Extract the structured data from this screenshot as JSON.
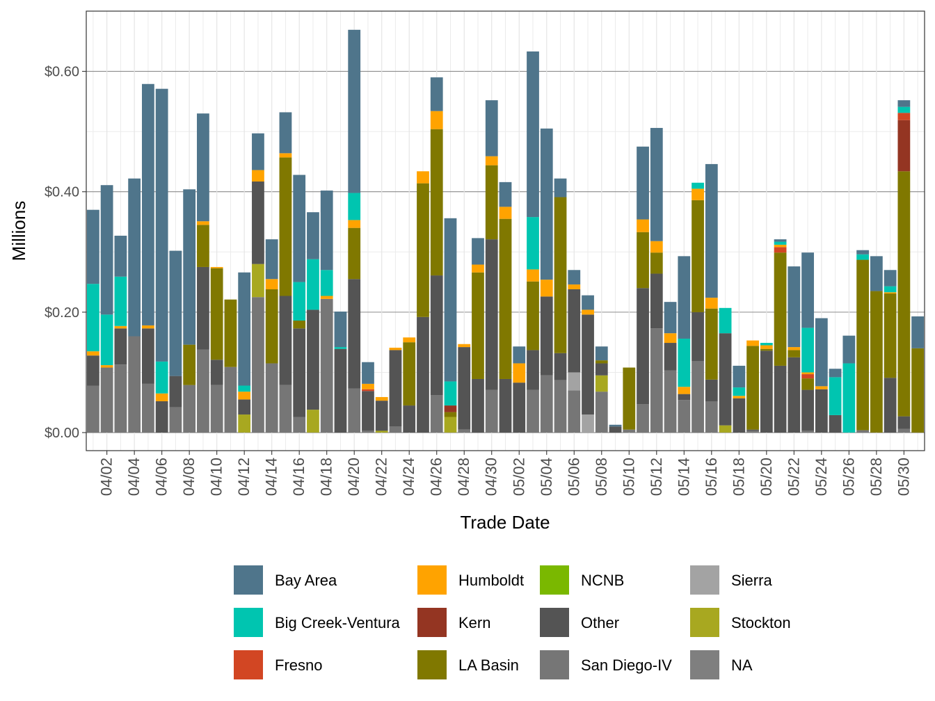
{
  "chart_data": {
    "type": "bar",
    "stacked": true,
    "xlabel": "Trade Date",
    "ylabel": "Millions",
    "ylim": [
      -0.03,
      0.7
    ],
    "y_ticks": [
      0.0,
      0.2,
      0.4,
      0.6
    ],
    "y_tick_labels": [
      "$0.00",
      "$0.20",
      "$0.40",
      "$0.60"
    ],
    "x_tick_labels": [
      "04/02",
      "04/04",
      "04/06",
      "04/08",
      "04/10",
      "04/12",
      "04/14",
      "04/16",
      "04/18",
      "04/20",
      "04/22",
      "04/24",
      "04/26",
      "04/28",
      "04/30",
      "05/02",
      "05/04",
      "05/06",
      "05/08",
      "05/10",
      "05/12",
      "05/14",
      "05/16",
      "05/18",
      "05/20",
      "05/22",
      "05/24",
      "05/26",
      "05/28",
      "05/30"
    ],
    "categories": [
      "04/01",
      "04/02",
      "04/03",
      "04/04",
      "04/05",
      "04/06",
      "04/07",
      "04/08",
      "04/09",
      "04/10",
      "04/11",
      "04/12",
      "04/13",
      "04/14",
      "04/15",
      "04/16",
      "04/17",
      "04/18",
      "04/19",
      "04/20",
      "04/21",
      "04/22",
      "04/23",
      "04/24",
      "04/25",
      "04/26",
      "04/27",
      "04/28",
      "04/29",
      "04/30",
      "05/01",
      "05/02",
      "05/03",
      "05/04",
      "05/05",
      "05/06",
      "05/07",
      "05/08",
      "05/09",
      "05/10",
      "05/11",
      "05/12",
      "05/13",
      "05/14",
      "05/15",
      "05/16",
      "05/17",
      "05/18",
      "05/19",
      "05/20",
      "05/21",
      "05/22",
      "05/23",
      "05/24",
      "05/25",
      "05/26",
      "05/27",
      "05/28",
      "05/29",
      "05/30",
      "05/31"
    ],
    "stack_order": [
      "San Diego-IV",
      "Stockton",
      "Sierra",
      "Other",
      "NCNB",
      "LA Basin",
      "Kern",
      "Fresno",
      "Humboldt",
      "Big Creek-Ventura",
      "Bay Area"
    ],
    "colors": {
      "Bay Area": "#4f758b",
      "Big Creek-Ventura": "#00c5b0",
      "Fresno": "#d24623",
      "Humboldt": "#ffa300",
      "Kern": "#943522",
      "LA Basin": "#807800",
      "NCNB": "#7ab800",
      "Other": "#545454",
      "San Diego-IV": "#767676",
      "Sierra": "#a3a3a3",
      "Stockton": "#a8a820",
      "NA": "#7f7f7f"
    },
    "series": [
      {
        "name": "San Diego-IV",
        "values": [
          0.078,
          0.108,
          0.113,
          0.16,
          0.081,
          0.0,
          0.042,
          0.079,
          0.138,
          0.079,
          0.109,
          0.0,
          0.225,
          0.115,
          0.079,
          0.026,
          0.0,
          0.222,
          0.0,
          0.073,
          0.003,
          0.0,
          0.01,
          0.0,
          0.0,
          0.062,
          0.0,
          0.005,
          0.0,
          0.071,
          0.0,
          0.0,
          0.071,
          0.095,
          0.087,
          0.07,
          0.0,
          0.068,
          0.0,
          0.005,
          0.047,
          0.173,
          0.103,
          0.054,
          0.119,
          0.052,
          0.0,
          0.0,
          0.003,
          0.0,
          0.0,
          0.0,
          0.003,
          0.0,
          0.0,
          0.0,
          0.004,
          0.0,
          0.0,
          0.006,
          0.0
        ]
      },
      {
        "name": "Stockton",
        "values": [
          0.0,
          0.0,
          0.0,
          0.0,
          0.0,
          0.0,
          0.0,
          0.0,
          0.0,
          0.0,
          0.0,
          0.03,
          0.055,
          0.0,
          0.0,
          0.0,
          0.038,
          0.0,
          0.0,
          0.0,
          0.0,
          0.003,
          0.0,
          0.0,
          0.0,
          0.0,
          0.026,
          0.0,
          0.0,
          0.0,
          0.0,
          0.0,
          0.0,
          0.0,
          0.0,
          0.0,
          0.0,
          0.027,
          0.0,
          0.0,
          0.0,
          0.0,
          0.0,
          0.0,
          0.0,
          0.0,
          0.012,
          0.0,
          0.0,
          0.0,
          0.0,
          0.0,
          0.0,
          0.0,
          0.0,
          0.0,
          0.0,
          0.0,
          0.0,
          0.0,
          0.0
        ]
      },
      {
        "name": "Sierra",
        "values": [
          0.0,
          0.0,
          0.0,
          0.0,
          0.0,
          0.0,
          0.0,
          0.0,
          0.0,
          0.0,
          0.0,
          0.0,
          0.0,
          0.0,
          0.0,
          0.0,
          0.0,
          0.0,
          0.0,
          0.0,
          0.0,
          0.0,
          0.0,
          0.0,
          0.0,
          0.0,
          0.0,
          0.0,
          0.0,
          0.0,
          0.0,
          0.0,
          0.0,
          0.0,
          0.0,
          0.03,
          0.03,
          0.0,
          0.0,
          0.0,
          0.0,
          0.0,
          0.0,
          0.0,
          0.0,
          0.0,
          0.0,
          0.0,
          0.0,
          0.0,
          0.0,
          0.0,
          0.0,
          0.0,
          0.0,
          0.0,
          0.0,
          0.0,
          0.0,
          0.0,
          0.0
        ]
      },
      {
        "name": "Other",
        "values": [
          0.05,
          0.0,
          0.06,
          0.0,
          0.092,
          0.052,
          0.052,
          0.0,
          0.137,
          0.042,
          0.0,
          0.025,
          0.137,
          0.0,
          0.148,
          0.147,
          0.166,
          0.0,
          0.139,
          0.182,
          0.066,
          0.05,
          0.127,
          0.045,
          0.192,
          0.199,
          0.0,
          0.137,
          0.089,
          0.25,
          0.089,
          0.083,
          0.066,
          0.131,
          0.045,
          0.138,
          0.166,
          0.02,
          0.01,
          0.0,
          0.193,
          0.091,
          0.046,
          0.01,
          0.081,
          0.036,
          0.153,
          0.057,
          0.002,
          0.136,
          0.111,
          0.125,
          0.068,
          0.072,
          0.029,
          0.0,
          0.0,
          0.0,
          0.091,
          0.021,
          0.0
        ]
      },
      {
        "name": "NCNB",
        "values": [
          0.0,
          0.0,
          0.0,
          0.0,
          0.0,
          0.0,
          0.0,
          0.0,
          0.0,
          0.0,
          0.0,
          0.0,
          0.0,
          0.0,
          0.0,
          0.0,
          0.0,
          0.0,
          0.0,
          0.0,
          0.0,
          0.0,
          0.0,
          0.0,
          0.0,
          0.0,
          0.0,
          0.0,
          0.0,
          0.0,
          0.0,
          0.0,
          0.0,
          0.0,
          0.0,
          0.0,
          0.0,
          0.0,
          0.0,
          0.0,
          0.0,
          0.0,
          0.0,
          0.0,
          0.0,
          0.0,
          0.0,
          0.0,
          0.0,
          0.0,
          0.0,
          0.0,
          0.0,
          0.0,
          0.0,
          0.0,
          0.0,
          0.0,
          0.0,
          0.0,
          0.0
        ]
      },
      {
        "name": "LA Basin",
        "values": [
          0.0,
          0.0,
          0.0,
          0.0,
          0.0,
          0.0,
          0.0,
          0.067,
          0.07,
          0.152,
          0.112,
          0.0,
          0.0,
          0.123,
          0.23,
          0.013,
          0.0,
          0.0,
          0.0,
          0.085,
          0.0,
          0.0,
          0.0,
          0.105,
          0.222,
          0.243,
          0.008,
          0.0,
          0.177,
          0.123,
          0.266,
          0.0,
          0.114,
          0.0,
          0.259,
          0.0,
          0.0,
          0.005,
          0.0,
          0.103,
          0.093,
          0.035,
          0.0,
          0.0,
          0.186,
          0.118,
          0.0,
          0.0,
          0.139,
          0.003,
          0.188,
          0.012,
          0.019,
          0.0,
          0.0,
          0.0,
          0.283,
          0.235,
          0.14,
          0.407,
          0.14
        ]
      },
      {
        "name": "Kern",
        "values": [
          0.0,
          0.0,
          0.0,
          0.0,
          0.0,
          0.0,
          0.0,
          0.0,
          0.0,
          0.0,
          0.0,
          0.0,
          0.0,
          0.0,
          0.0,
          0.0,
          0.0,
          0.0,
          0.0,
          0.0,
          0.0,
          0.0,
          0.0,
          0.0,
          0.0,
          0.0,
          0.011,
          0.0,
          0.0,
          0.0,
          0.0,
          0.0,
          0.0,
          0.0,
          0.0,
          0.0,
          0.0,
          0.0,
          0.0,
          0.0,
          0.0,
          0.0,
          0.0,
          0.0,
          0.0,
          0.0,
          0.0,
          0.0,
          0.0,
          0.0,
          0.0,
          0.0,
          0.0,
          0.0,
          0.0,
          0.0,
          0.0,
          0.0,
          0.0,
          0.085,
          0.0
        ]
      },
      {
        "name": "Fresno",
        "values": [
          0.0,
          0.0,
          0.0,
          0.0,
          0.0,
          0.0,
          0.0,
          0.0,
          0.0,
          0.0,
          0.0,
          0.0,
          0.0,
          0.0,
          0.0,
          0.0,
          0.0,
          0.0,
          0.0,
          0.0,
          0.003,
          0.0,
          0.0,
          0.0,
          0.0,
          0.0,
          0.0,
          0.0,
          0.0,
          0.0,
          0.0,
          0.0,
          0.0,
          0.0,
          0.0,
          0.0,
          0.0,
          0.0,
          0.0,
          0.0,
          0.0,
          0.0,
          0.0,
          0.0,
          0.0,
          0.0,
          0.0,
          0.0,
          0.0,
          0.0,
          0.009,
          0.0,
          0.007,
          0.0,
          0.0,
          0.0,
          0.0,
          0.0,
          0.0,
          0.012,
          0.0
        ]
      },
      {
        "name": "Humboldt",
        "values": [
          0.007,
          0.004,
          0.004,
          0.0,
          0.005,
          0.013,
          0.0,
          0.0,
          0.006,
          0.002,
          0.0,
          0.013,
          0.019,
          0.017,
          0.007,
          0.0,
          0.0,
          0.005,
          0.0,
          0.013,
          0.009,
          0.006,
          0.004,
          0.008,
          0.02,
          0.03,
          0.0,
          0.005,
          0.013,
          0.015,
          0.02,
          0.032,
          0.02,
          0.028,
          0.0,
          0.008,
          0.008,
          0.0,
          0.0,
          0.0,
          0.021,
          0.019,
          0.016,
          0.012,
          0.019,
          0.018,
          0.0,
          0.004,
          0.009,
          0.006,
          0.004,
          0.005,
          0.003,
          0.005,
          0.0,
          0.0,
          0.0,
          0.0,
          0.002,
          0.0,
          0.0
        ]
      },
      {
        "name": "Big Creek-Ventura",
        "values": [
          0.112,
          0.084,
          0.082,
          0.0,
          0.0,
          0.053,
          0.0,
          0.0,
          0.0,
          0.0,
          0.0,
          0.01,
          0.0,
          0.0,
          0.0,
          0.064,
          0.084,
          0.043,
          0.003,
          0.045,
          0.0,
          0.0,
          0.0,
          0.0,
          0.0,
          0.0,
          0.04,
          0.0,
          0.0,
          0.0,
          0.0,
          0.0,
          0.087,
          0.0,
          0.0,
          0.0,
          0.0,
          0.0,
          0.0,
          0.0,
          0.0,
          0.0,
          0.0,
          0.08,
          0.01,
          0.0,
          0.042,
          0.014,
          0.0,
          0.004,
          0.005,
          0.0,
          0.074,
          0.0,
          0.063,
          0.115,
          0.009,
          0.0,
          0.01,
          0.01,
          0.0
        ]
      },
      {
        "name": "Bay Area",
        "values": [
          0.123,
          0.215,
          0.068,
          0.262,
          0.401,
          0.453,
          0.208,
          0.258,
          0.179,
          0.0,
          0.0,
          0.188,
          0.061,
          0.066,
          0.068,
          0.178,
          0.078,
          0.132,
          0.059,
          0.271,
          0.036,
          0.0,
          0.0,
          0.0,
          0.0,
          0.056,
          0.271,
          0.0,
          0.044,
          0.093,
          0.041,
          0.028,
          0.275,
          0.251,
          0.031,
          0.024,
          0.024,
          0.023,
          0.003,
          0.0,
          0.121,
          0.188,
          0.052,
          0.137,
          0.0,
          0.222,
          0.0,
          0.036,
          0.0,
          0.0,
          0.004,
          0.134,
          0.125,
          0.113,
          0.014,
          0.046,
          0.007,
          0.058,
          0.027,
          0.011,
          0.053
        ]
      }
    ],
    "legend": [
      "Bay Area",
      "Big Creek-Ventura",
      "Fresno",
      "Humboldt",
      "Kern",
      "LA Basin",
      "NCNB",
      "Other",
      "San Diego-IV",
      "Sierra",
      "Stockton",
      "NA"
    ],
    "legend_position": "bottom"
  }
}
